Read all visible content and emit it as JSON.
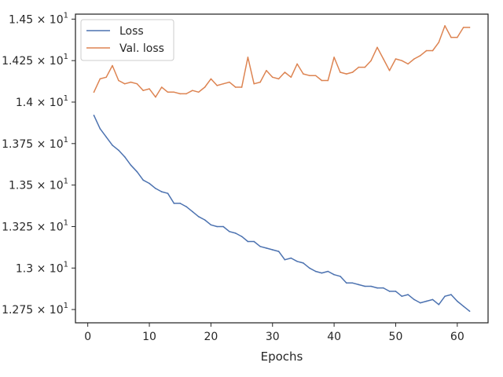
{
  "chart_data": {
    "type": "line",
    "xlabel": "Epochs",
    "ylabel": "",
    "title": "",
    "xlim": [
      -2,
      65
    ],
    "ylim": [
      12.67,
      14.53
    ],
    "xticks": [
      0,
      10,
      20,
      30,
      40,
      50,
      60
    ],
    "yticks": [
      {
        "value": 12.75,
        "mantissa": "1.275",
        "base": "10",
        "exp": "1"
      },
      {
        "value": 13.0,
        "mantissa": "1.3",
        "base": "10",
        "exp": "1"
      },
      {
        "value": 13.25,
        "mantissa": "1.325",
        "base": "10",
        "exp": "1"
      },
      {
        "value": 13.5,
        "mantissa": "1.35",
        "base": "10",
        "exp": "1"
      },
      {
        "value": 13.75,
        "mantissa": "1.375",
        "base": "10",
        "exp": "1"
      },
      {
        "value": 14.0,
        "mantissa": "1.4",
        "base": "10",
        "exp": "1"
      },
      {
        "value": 14.25,
        "mantissa": "1.425",
        "base": "10",
        "exp": "1"
      },
      {
        "value": 14.5,
        "mantissa": "1.45",
        "base": "10",
        "exp": "1"
      }
    ],
    "grid": false,
    "legend_position": "top-left",
    "x": [
      1,
      2,
      3,
      4,
      5,
      6,
      7,
      8,
      9,
      10,
      11,
      12,
      13,
      14,
      15,
      16,
      17,
      18,
      19,
      20,
      21,
      22,
      23,
      24,
      25,
      26,
      27,
      28,
      29,
      30,
      31,
      32,
      33,
      34,
      35,
      36,
      37,
      38,
      39,
      40,
      41,
      42,
      43,
      44,
      45,
      46,
      47,
      48,
      49,
      50,
      51,
      52,
      53,
      54,
      55,
      56,
      57,
      58,
      59,
      60,
      61,
      62
    ],
    "series": [
      {
        "name": "Loss",
        "color": "#4c72b0",
        "values": [
          13.92,
          13.84,
          13.79,
          13.74,
          13.71,
          13.67,
          13.62,
          13.58,
          13.53,
          13.51,
          13.48,
          13.46,
          13.45,
          13.39,
          13.39,
          13.37,
          13.34,
          13.31,
          13.29,
          13.26,
          13.25,
          13.25,
          13.22,
          13.21,
          13.19,
          13.16,
          13.16,
          13.13,
          13.12,
          13.11,
          13.1,
          13.05,
          13.06,
          13.04,
          13.03,
          13.0,
          12.98,
          12.97,
          12.98,
          12.96,
          12.95,
          12.91,
          12.91,
          12.9,
          12.89,
          12.89,
          12.88,
          12.88,
          12.86,
          12.86,
          12.83,
          12.84,
          12.81,
          12.79,
          12.8,
          12.81,
          12.78,
          12.83,
          12.84,
          12.8,
          12.77,
          12.74
        ]
      },
      {
        "name": "Val. loss",
        "color": "#dd8452",
        "values": [
          14.06,
          14.14,
          14.15,
          14.22,
          14.13,
          14.11,
          14.12,
          14.11,
          14.07,
          14.08,
          14.03,
          14.09,
          14.06,
          14.06,
          14.05,
          14.05,
          14.07,
          14.06,
          14.09,
          14.14,
          14.1,
          14.11,
          14.12,
          14.09,
          14.09,
          14.27,
          14.11,
          14.12,
          14.19,
          14.15,
          14.14,
          14.18,
          14.15,
          14.23,
          14.17,
          14.16,
          14.16,
          14.13,
          14.13,
          14.27,
          14.18,
          14.17,
          14.18,
          14.21,
          14.21,
          14.25,
          14.33,
          14.26,
          14.19,
          14.26,
          14.25,
          14.23,
          14.26,
          14.28,
          14.31,
          14.31,
          14.36,
          14.46,
          14.39,
          14.39,
          14.45,
          14.45
        ]
      }
    ]
  }
}
